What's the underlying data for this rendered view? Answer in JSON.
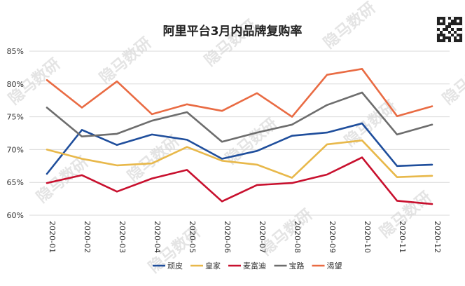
{
  "chart_data": {
    "type": "line",
    "title": "阿里平台3月内品牌复购率",
    "xlabel": "",
    "ylabel": "",
    "categories": [
      "2020-01",
      "2020-02",
      "2020-03",
      "2020-04",
      "2020-05",
      "2020-06",
      "2020-07",
      "2020-08",
      "2020-09",
      "2020-10",
      "2020-11",
      "2020-12"
    ],
    "ylim": [
      60,
      85
    ],
    "yticks": [
      "60%",
      "65%",
      "70%",
      "75%",
      "80%",
      "85%"
    ],
    "ytick_values": [
      60,
      65,
      70,
      75,
      80,
      85
    ],
    "grid": true,
    "legend_position": "bottom",
    "series": [
      {
        "name": "顽皮",
        "color": "#1f4e9c",
        "values": [
          66.3,
          73.0,
          70.7,
          72.3,
          71.5,
          68.6,
          69.8,
          72.1,
          72.6,
          74.0,
          67.5,
          67.7
        ]
      },
      {
        "name": "皇家",
        "color": "#e8b84a",
        "values": [
          70.0,
          68.6,
          67.6,
          67.9,
          70.4,
          68.3,
          67.7,
          65.7,
          70.8,
          71.4,
          65.8,
          66.0
        ]
      },
      {
        "name": "麦富迪",
        "color": "#c8102e",
        "values": [
          64.9,
          66.1,
          63.6,
          65.6,
          66.9,
          62.1,
          64.6,
          64.9,
          66.2,
          68.8,
          62.2,
          61.7
        ]
      },
      {
        "name": "宝路",
        "color": "#6d6d6d",
        "values": [
          76.4,
          72.0,
          72.4,
          74.4,
          75.7,
          71.2,
          72.6,
          73.8,
          76.8,
          78.7,
          72.3,
          73.8
        ]
      },
      {
        "name": "渴望",
        "color": "#e96b43",
        "values": [
          80.6,
          76.4,
          80.4,
          75.4,
          76.9,
          75.9,
          78.6,
          75.0,
          81.4,
          82.3,
          75.1,
          76.6
        ]
      }
    ]
  },
  "watermark": "隐马数研",
  "qr_icon": "qr-code-icon"
}
